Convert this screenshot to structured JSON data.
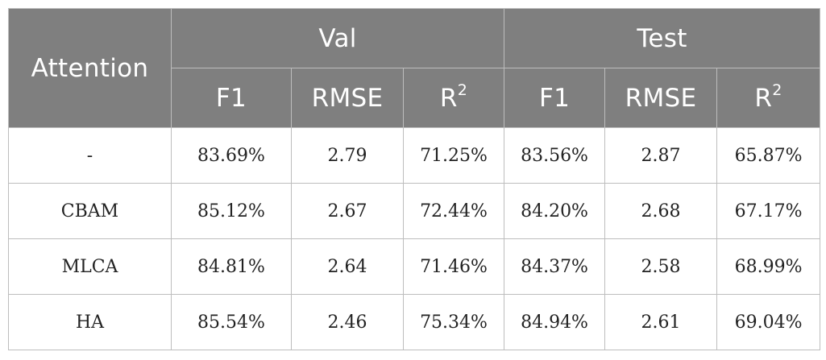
{
  "table": {
    "row_header": "Attention",
    "groups": [
      "Val",
      "Test"
    ],
    "metrics": [
      {
        "base": "F1",
        "sup": ""
      },
      {
        "base": "RMSE",
        "sup": ""
      },
      {
        "base": "R",
        "sup": "2"
      },
      {
        "base": "F1",
        "sup": ""
      },
      {
        "base": "RMSE",
        "sup": ""
      },
      {
        "base": "R",
        "sup": "2"
      }
    ],
    "rows": [
      {
        "name": "-",
        "cells": [
          "83.69%",
          "2.79",
          "71.25%",
          "83.56%",
          "2.87",
          "65.87%"
        ]
      },
      {
        "name": "CBAM",
        "cells": [
          "85.12%",
          "2.67",
          "72.44%",
          "84.20%",
          "2.68",
          "67.17%"
        ]
      },
      {
        "name": "MLCA",
        "cells": [
          "84.81%",
          "2.64",
          "71.46%",
          "84.37%",
          "2.58",
          "68.99%"
        ]
      },
      {
        "name": "HA",
        "cells": [
          "85.54%",
          "2.46",
          "75.34%",
          "84.94%",
          "2.61",
          "69.04%"
        ]
      }
    ]
  },
  "colors": {
    "header_bg": "#7f7f7f",
    "header_text": "#ffffff",
    "border": "#bdbdbd",
    "cell_text": "#222222"
  }
}
